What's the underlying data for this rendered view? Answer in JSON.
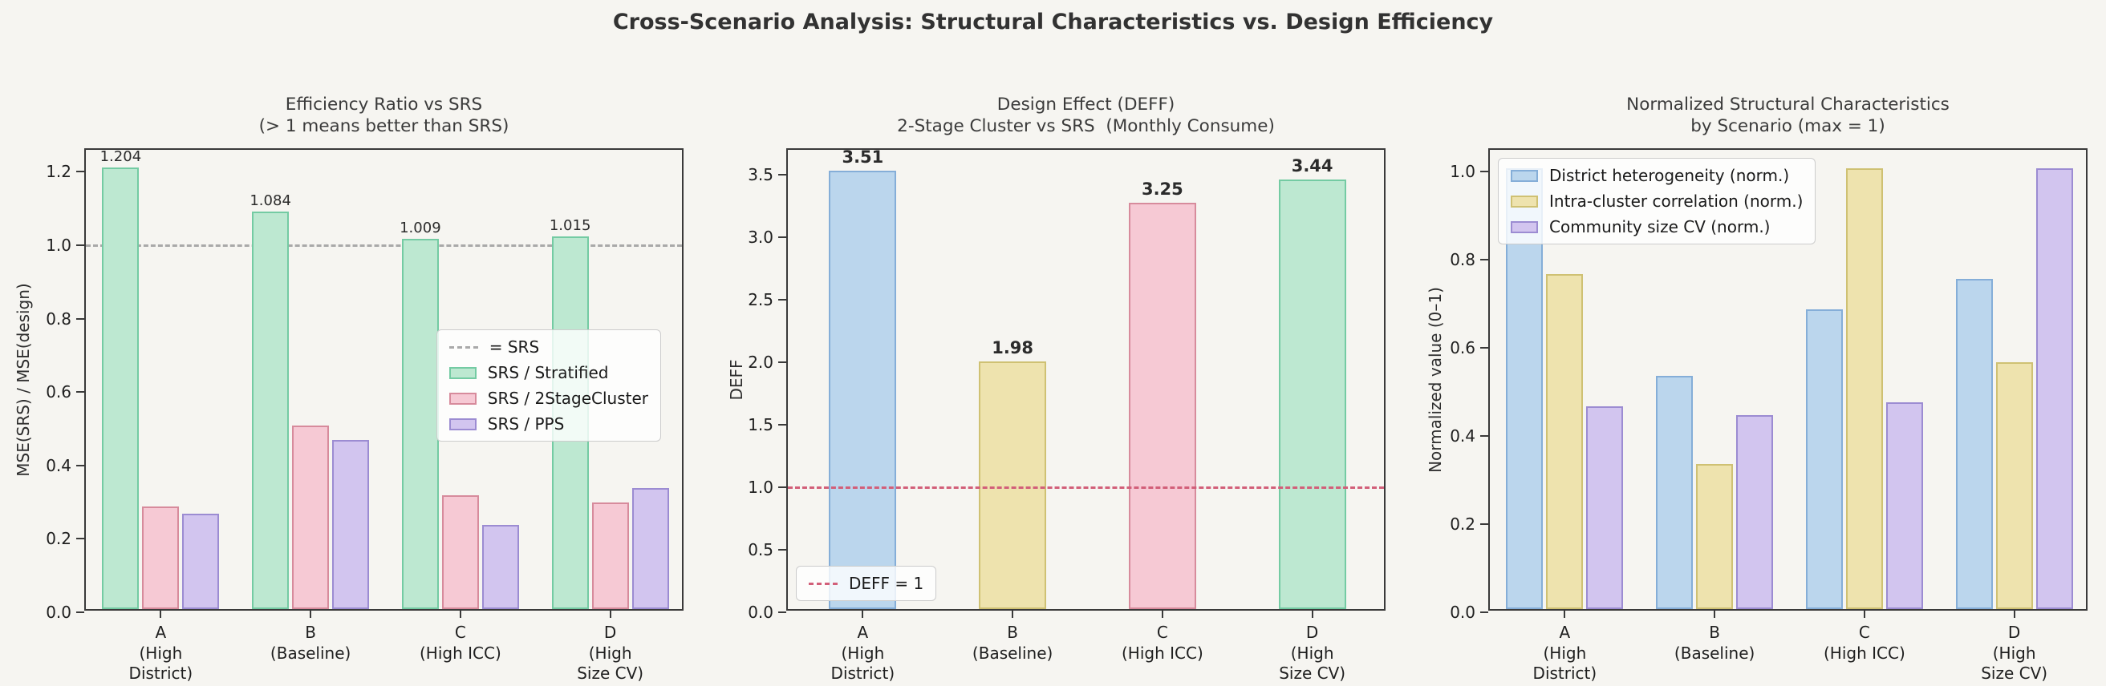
{
  "figure_title": "Cross-Scenario Analysis: Structural Characteristics vs. Design Efficiency",
  "palette": {
    "green": {
      "fill": "#bde8d1",
      "edge": "#74cba3"
    },
    "pink": {
      "fill": "#f6c9d4",
      "edge": "#d78b9c"
    },
    "purple": {
      "fill": "#d2c5ef",
      "edge": "#9c8cd2"
    },
    "blue": {
      "fill": "#bbd6ed",
      "edge": "#85aed8"
    },
    "yellow": {
      "fill": "#eee3ae",
      "edge": "#cfc173"
    }
  },
  "chart_data": [
    {
      "key": "efficiency-ratio",
      "type": "bar",
      "title_lines": [
        "Efficiency Ratio vs SRS",
        "(> 1 means better than SRS)"
      ],
      "ylabel": "MSE(SRS) / MSE(design)",
      "ylim": [
        0,
        1.26
      ],
      "yticks": [
        0.0,
        0.2,
        0.4,
        0.6,
        0.8,
        1.0,
        1.2
      ],
      "grid": false,
      "categories": [
        [
          "A",
          "(High",
          "District)"
        ],
        [
          "B",
          "(Baseline)"
        ],
        [
          "C",
          "(High ICC)"
        ],
        [
          "D",
          "(High",
          "Size CV)"
        ]
      ],
      "series": [
        {
          "name": "SRS / Stratified",
          "color": "green",
          "values": [
            1.204,
            1.084,
            1.009,
            1.015
          ],
          "value_labels": [
            "1.204",
            "1.084",
            "1.009",
            "1.015"
          ]
        },
        {
          "name": "SRS / 2StageCluster",
          "color": "pink",
          "values": [
            0.28,
            0.5,
            0.31,
            0.29
          ]
        },
        {
          "name": "SRS / PPS",
          "color": "purple",
          "values": [
            0.26,
            0.46,
            0.23,
            0.33
          ]
        }
      ],
      "ref_line": {
        "value": 1.0,
        "color": "#a9a9a9",
        "label": "= SRS",
        "above_bars": false
      },
      "legend": {
        "position": "center-right",
        "include_ref": true,
        "include_series": true
      }
    },
    {
      "key": "design-effect",
      "type": "bar",
      "title_lines": [
        "Design Effect (DEFF)",
        "2-Stage Cluster vs SRS  (Monthly Consume)"
      ],
      "ylabel": "DEFF",
      "ylim": [
        0,
        3.7
      ],
      "yticks": [
        0.0,
        0.5,
        1.0,
        1.5,
        2.0,
        2.5,
        3.0,
        3.5
      ],
      "grid": false,
      "categories": [
        [
          "A",
          "(High",
          "District)"
        ],
        [
          "B",
          "(Baseline)"
        ],
        [
          "C",
          "(High ICC)"
        ],
        [
          "D",
          "(High",
          "Size CV)"
        ]
      ],
      "series": [
        {
          "name": "DEFF",
          "colors": [
            "blue",
            "yellow",
            "pink",
            "green"
          ],
          "values": [
            3.51,
            1.98,
            3.25,
            3.44
          ],
          "value_labels": [
            "3.51",
            "1.98",
            "3.25",
            "3.44"
          ],
          "bold_labels": true
        }
      ],
      "ref_line": {
        "value": 1.0,
        "color": "#d25f79",
        "label": "DEFF = 1",
        "above_bars": true
      },
      "legend": {
        "position": "bottom-left",
        "include_ref": true,
        "include_series": false
      }
    },
    {
      "key": "structural-characteristics",
      "type": "bar",
      "title_lines": [
        "Normalized Structural Characteristics",
        "by Scenario (max = 1)"
      ],
      "ylabel": "Normalized value (0–1)",
      "ylim": [
        0,
        1.05
      ],
      "yticks": [
        0.0,
        0.2,
        0.4,
        0.6,
        0.8,
        1.0
      ],
      "grid": false,
      "categories": [
        [
          "A",
          "(High",
          "District)"
        ],
        [
          "B",
          "(Baseline)"
        ],
        [
          "C",
          "(High ICC)"
        ],
        [
          "D",
          "(High",
          "Size CV)"
        ]
      ],
      "series": [
        {
          "name": "District heterogeneity (norm.)",
          "color": "blue",
          "values": [
            1.0,
            0.53,
            0.68,
            0.75
          ]
        },
        {
          "name": "Intra-cluster correlation (norm.)",
          "color": "yellow",
          "values": [
            0.76,
            0.33,
            1.0,
            0.56
          ]
        },
        {
          "name": "Community size CV (norm.)",
          "color": "purple",
          "values": [
            0.46,
            0.44,
            0.47,
            1.0
          ]
        }
      ],
      "legend": {
        "position": "top-left",
        "include_ref": false,
        "include_series": true
      }
    }
  ]
}
